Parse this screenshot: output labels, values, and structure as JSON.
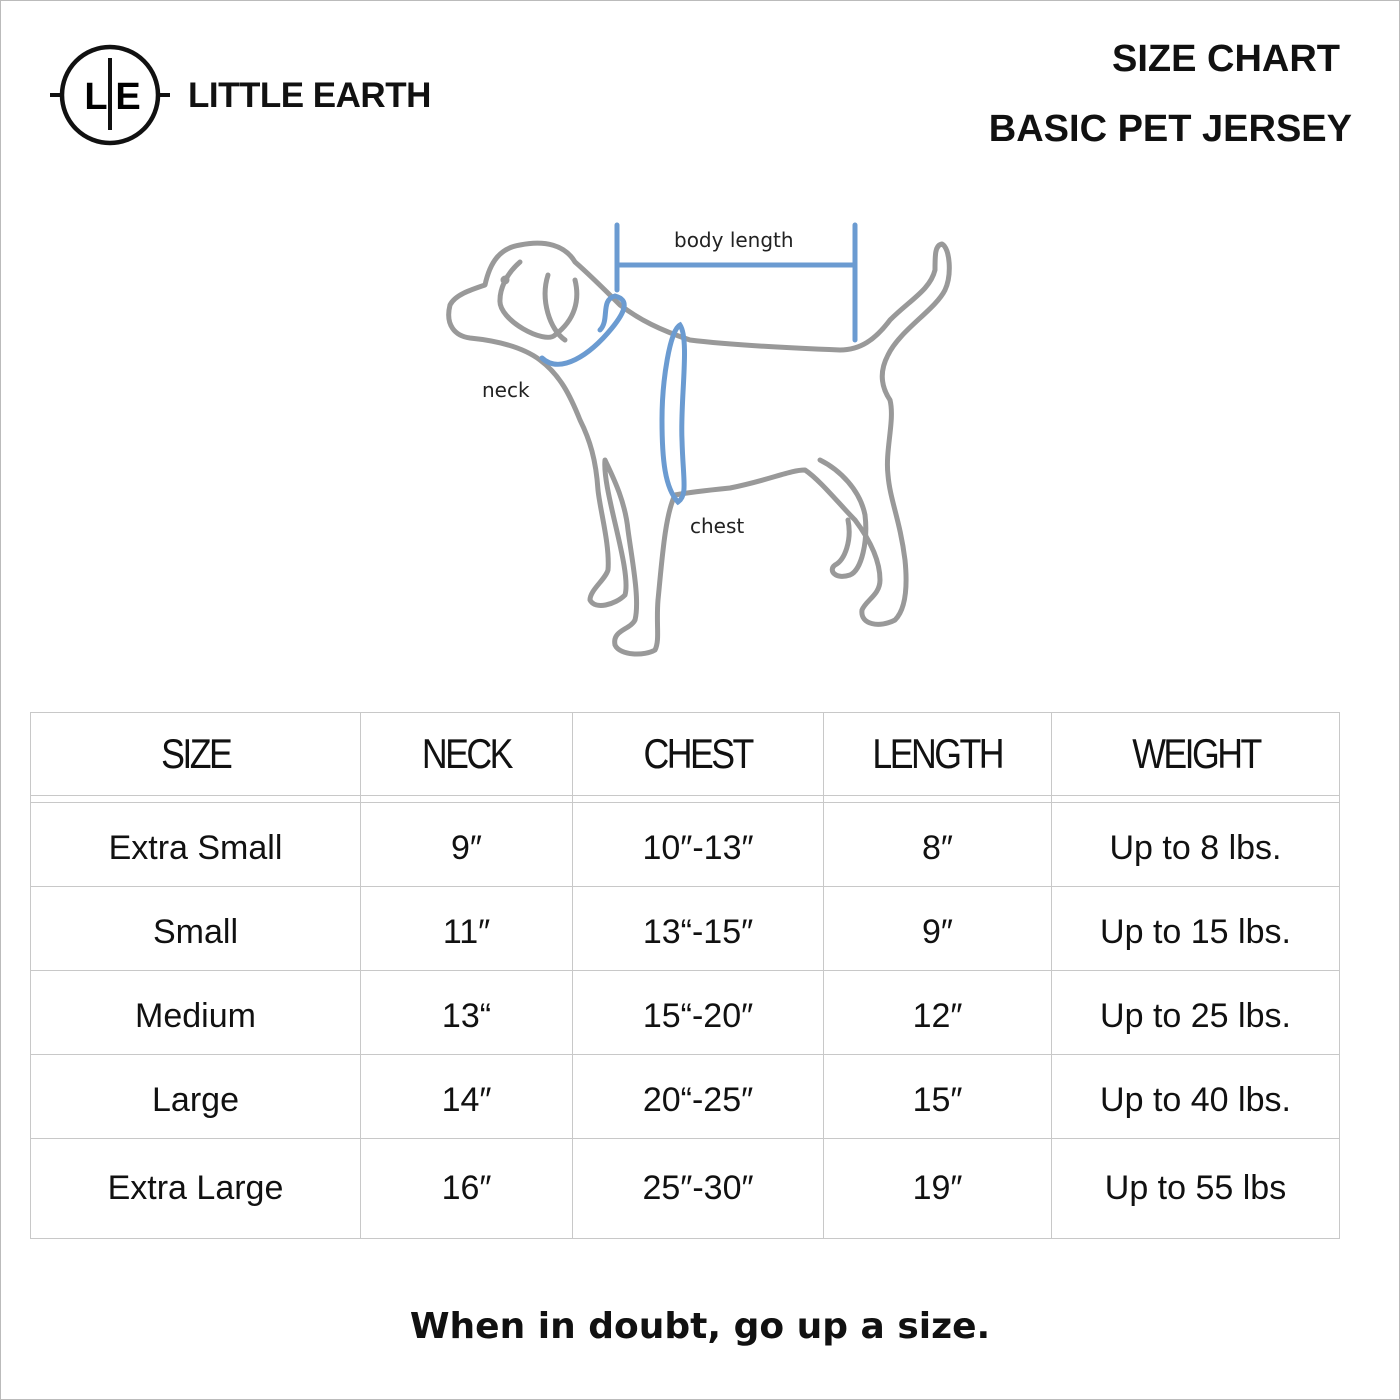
{
  "brand": {
    "name": "LITTLE EARTH",
    "logo_letters": "L|E"
  },
  "header": {
    "title": "SIZE CHART",
    "subtitle": "BASIC PET JERSEY"
  },
  "diagram": {
    "labels": {
      "body_length": "body length",
      "neck": "neck",
      "chest": "chest"
    },
    "colors": {
      "outline": "#999999",
      "measure": "#6b9bd1"
    }
  },
  "table": {
    "columns": [
      "SIZE",
      "NECK",
      "CHEST",
      "LENGTH",
      "WEIGHT"
    ],
    "rows": [
      [
        "Extra Small",
        "9″",
        "10″-13″",
        "8″",
        "Up to 8 lbs."
      ],
      [
        "Small",
        "11″",
        "13“-15″",
        "9″",
        "Up to 15 lbs."
      ],
      [
        "Medium",
        "13“",
        "15“-20″",
        "12″",
        "Up to 25 lbs."
      ],
      [
        "Large",
        "14″",
        "20“-25″",
        "15″",
        "Up to 40 lbs."
      ],
      [
        "Extra Large",
        "16″",
        "25″-30″",
        "19″",
        "Up to 55 lbs"
      ]
    ]
  },
  "footer": {
    "note": "When in doubt, go up a size."
  }
}
